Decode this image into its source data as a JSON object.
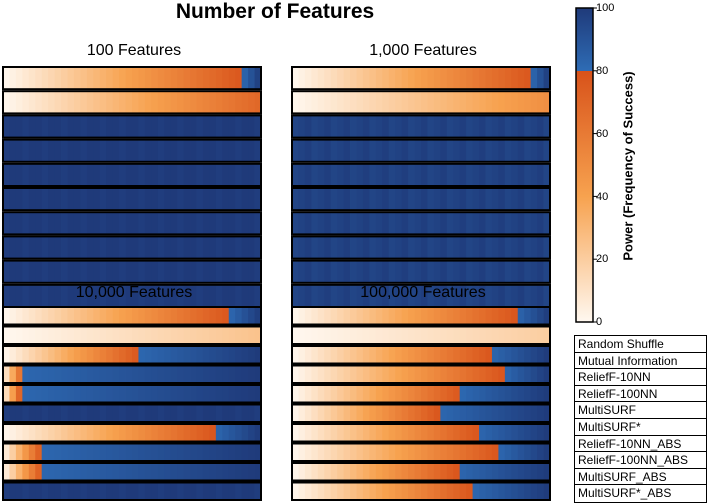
{
  "chart_data": {
    "type": "heatmap",
    "title": "Number of Features",
    "colorbar": {
      "label": "Power (Frequency of Success)",
      "ticks": [
        0,
        20,
        40,
        60,
        80,
        100
      ],
      "range": [
        0,
        100
      ],
      "colors": {
        "low": "#fff8f0",
        "mid": "#f7a24f",
        "high": "#d8521a",
        "above80_low": "#2e6cb5",
        "above80_high": "#1f3a7a"
      }
    },
    "methods": [
      "Random Shuffle",
      "Mutual Information",
      "ReliefF-10NN",
      "ReliefF-100NN",
      "MultiSURF",
      "MultiSURF*",
      "ReliefF-10NN_ABS",
      "ReliefF-100NN_ABS",
      "MultiSURF_ABS",
      "MultiSURF*_ABS"
    ],
    "panels": [
      {
        "title": "100 Features",
        "rows": [
          {
            "profile": "ramp",
            "end": 92,
            "blue_from": 0.93
          },
          {
            "profile": "ramp",
            "end": 70
          },
          {
            "profile": "const",
            "v": 100
          },
          {
            "profile": "const",
            "v": 100
          },
          {
            "profile": "const",
            "v": 100
          },
          {
            "profile": "const",
            "v": 100
          },
          {
            "profile": "const",
            "v": 100
          },
          {
            "profile": "const",
            "v": 100
          },
          {
            "profile": "const",
            "v": 100
          },
          {
            "profile": "const",
            "v": 100
          }
        ]
      },
      {
        "title": "1,000 Features",
        "rows": [
          {
            "profile": "ramp",
            "end": 90,
            "blue_from": 0.93
          },
          {
            "profile": "ramp",
            "end": 50
          },
          {
            "profile": "const",
            "v": 97
          },
          {
            "profile": "const",
            "v": 97
          },
          {
            "profile": "const",
            "v": 97
          },
          {
            "profile": "const",
            "v": 97
          },
          {
            "profile": "const",
            "v": 97
          },
          {
            "profile": "const",
            "v": 97
          },
          {
            "profile": "const",
            "v": 97
          },
          {
            "profile": "const",
            "v": 97
          }
        ]
      },
      {
        "title": "10,000 Features",
        "rows": [
          {
            "profile": "ramp",
            "end": 90,
            "blue_from": 0.88
          },
          {
            "profile": "ramp",
            "end": 25
          },
          {
            "profile": "ramp",
            "end": 98,
            "blue_from": 0.53
          },
          {
            "profile": "ramp",
            "end": 100,
            "blue_from": 0.08
          },
          {
            "profile": "ramp",
            "end": 100,
            "blue_from": 0.07
          },
          {
            "profile": "const",
            "v": 100
          },
          {
            "profile": "ramp",
            "end": 95,
            "blue_from": 0.82
          },
          {
            "profile": "ramp",
            "end": 100,
            "blue_from": 0.15
          },
          {
            "profile": "ramp",
            "end": 100,
            "blue_from": 0.15
          },
          {
            "profile": "const",
            "v": 100
          }
        ]
      },
      {
        "title": "100,000 Features",
        "rows": [
          {
            "profile": "ramp",
            "end": 90,
            "blue_from": 0.87
          },
          {
            "profile": "ramp",
            "end": 20
          },
          {
            "profile": "ramp",
            "end": 92,
            "blue_from": 0.77
          },
          {
            "profile": "ramp",
            "end": 95,
            "blue_from": 0.82
          },
          {
            "profile": "ramp",
            "end": 95,
            "blue_from": 0.66
          },
          {
            "profile": "ramp",
            "end": 95,
            "blue_from": 0.57
          },
          {
            "profile": "ramp",
            "end": 95,
            "blue_from": 0.72
          },
          {
            "profile": "ramp",
            "end": 95,
            "blue_from": 0.8
          },
          {
            "profile": "ramp",
            "end": 95,
            "blue_from": 0.64
          },
          {
            "profile": "ramp",
            "end": 95,
            "blue_from": 0.7
          }
        ]
      }
    ]
  }
}
